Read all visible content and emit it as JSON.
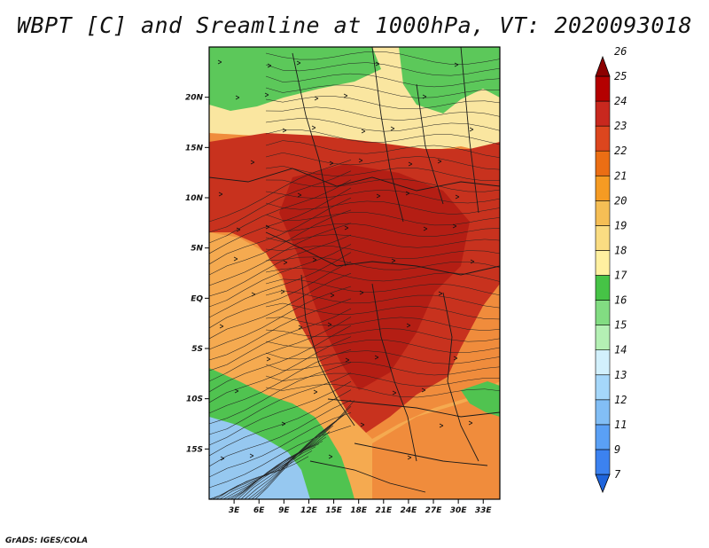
{
  "title": "WBPT [C] and Sreamline at 1000hPa, VT: 2020093018",
  "credit": "GrADS: IGES/COLA",
  "map": {
    "lon_range": [
      0,
      35
    ],
    "lat_range": [
      -20,
      25
    ],
    "lon_ticks": [
      {
        "value": 3,
        "label": "3E"
      },
      {
        "value": 6,
        "label": "6E"
      },
      {
        "value": 9,
        "label": "9E"
      },
      {
        "value": 12,
        "label": "12E"
      },
      {
        "value": 15,
        "label": "15E"
      },
      {
        "value": 18,
        "label": "18E"
      },
      {
        "value": 21,
        "label": "21E"
      },
      {
        "value": 24,
        "label": "24E"
      },
      {
        "value": 27,
        "label": "27E"
      },
      {
        "value": 30,
        "label": "30E"
      },
      {
        "value": 33,
        "label": "33E"
      }
    ],
    "lat_ticks": [
      {
        "value": 20,
        "label": "20N"
      },
      {
        "value": 15,
        "label": "15N"
      },
      {
        "value": 10,
        "label": "10N"
      },
      {
        "value": 5,
        "label": "5N"
      },
      {
        "value": 0,
        "label": "EQ"
      },
      {
        "value": -5,
        "label": "5S"
      },
      {
        "value": -10,
        "label": "10S"
      },
      {
        "value": -15,
        "label": "15S"
      }
    ]
  },
  "colorbar": {
    "labels": [
      "7",
      "9",
      "11",
      "12",
      "13",
      "14",
      "15",
      "16",
      "17",
      "18",
      "19",
      "20",
      "21",
      "22",
      "23",
      "24",
      "25",
      "26"
    ],
    "colors": [
      "#1e64dc",
      "#3c82f0",
      "#5aa0f5",
      "#82bef5",
      "#a5d7fa",
      "#d2f0fc",
      "#b4f0b4",
      "#82dc82",
      "#46c346",
      "#fff0a0",
      "#fadc82",
      "#f5be55",
      "#f59b23",
      "#eb6e14",
      "#dc461e",
      "#c8281e",
      "#b40000",
      "#8c0000"
    ]
  },
  "regions": [
    {
      "name": "sahel-green",
      "color": "#5cc85a"
    },
    {
      "name": "north-yellow",
      "color": "#fae6a0"
    },
    {
      "name": "orange-belt",
      "color": "#f08c3c"
    },
    {
      "name": "red-core",
      "color": "#c8321e"
    },
    {
      "name": "dark-red",
      "color": "#b41e14"
    },
    {
      "name": "southwest-orange",
      "color": "#f5aa50"
    },
    {
      "name": "south-green",
      "color": "#50c350"
    },
    {
      "name": "south-blue",
      "color": "#96c8f0"
    }
  ]
}
